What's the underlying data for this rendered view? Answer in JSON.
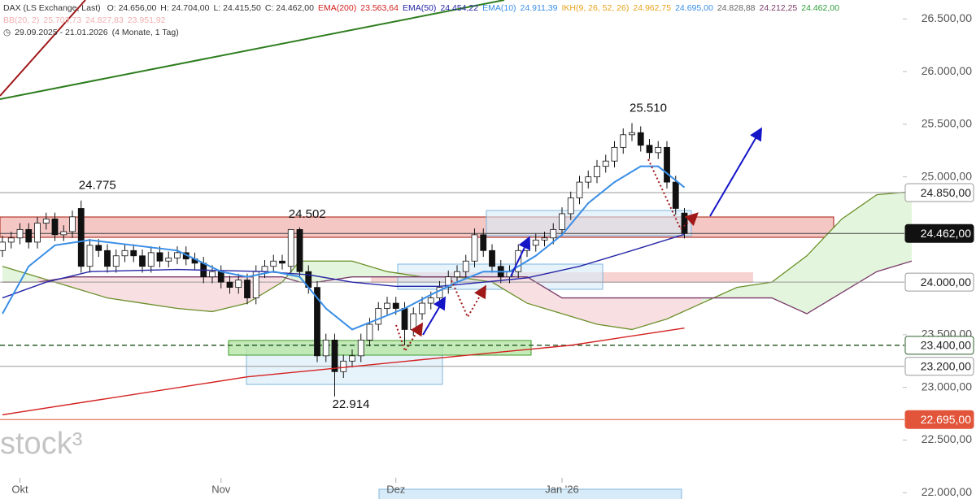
{
  "chart_data": {
    "type": "candlestick",
    "legend": {
      "title": "DAX (LS Exchange, Last)",
      "ohlc": [
        "O: 24.656,00",
        "H: 24.704,00",
        "L: 24.415,50",
        "C: 24.462,00"
      ],
      "indicators": [
        {
          "label": "EMA(200)",
          "values": [
            "23.563,64"
          ],
          "color": "#d42020",
          "value_colors": [
            "#d42020"
          ]
        },
        {
          "label": "EMA(50)",
          "values": [
            "24.454,22"
          ],
          "color": "#2626a6",
          "value_colors": [
            "#2626a6"
          ]
        },
        {
          "label": "EMA(10)",
          "values": [
            "24.911,39"
          ],
          "color": "#3a8ee6",
          "value_colors": [
            "#3a8ee6"
          ]
        },
        {
          "label": "IKH(9, 26, 52, 26)",
          "values": [
            "24.962,75",
            "24.695,00",
            "24.828,88",
            "24.212,25",
            "24.462,00"
          ],
          "color": "#e8a21c",
          "value_colors": [
            "#e8a21c",
            "#3a8ee6",
            "#666666",
            "#7a3a6a",
            "#2e9e3a"
          ]
        }
      ],
      "bb": {
        "label": "BB(20, 2)",
        "values": [
          "25.703,73",
          "24.827,83",
          "23.951,92"
        ],
        "color": "#f0b0b0"
      },
      "range": "29.09.2025 - 21.01.2026",
      "period": "(4 Monate, 1 Tag)"
    },
    "watermark": "stock³",
    "categories": [
      null,
      null,
      "Okt",
      null,
      null,
      null,
      null,
      null,
      null,
      null,
      null,
      null,
      null,
      null,
      null,
      null,
      null,
      null,
      null,
      null,
      null,
      null,
      null,
      null,
      null,
      "Nov",
      null,
      null,
      null,
      null,
      null,
      null,
      null,
      null,
      null,
      null,
      null,
      null,
      null,
      null,
      null,
      null,
      null,
      null,
      null,
      "Dez",
      null,
      null,
      null,
      null,
      null,
      null,
      null,
      null,
      null,
      null,
      null,
      null,
      null,
      null,
      null,
      null,
      null,
      null,
      "Jan '26",
      null,
      null,
      null,
      null,
      null,
      null,
      null,
      null,
      null,
      null,
      null,
      null,
      null,
      null
    ],
    "open": [
      24300,
      24380,
      24420,
      24500,
      24380,
      24560,
      24600,
      24450,
      24480,
      24700,
      24150,
      24350,
      24300,
      24150,
      24250,
      24300,
      24250,
      24150,
      24280,
      24200,
      24230,
      24280,
      24220,
      24180,
      24050,
      24100,
      24000,
      23950,
      24020,
      23850,
      24100,
      24150,
      24200,
      24150,
      24500,
      24100,
      23950,
      23300,
      23450,
      23150,
      23250,
      23300,
      23450,
      23600,
      23750,
      23800,
      23750,
      23550,
      23700,
      23800,
      23850,
      23950,
      24050,
      24100,
      24200,
      24450,
      24300,
      24150,
      24050,
      24100,
      24300,
      24350,
      24400,
      24420,
      24500,
      24650,
      24800,
      24950,
      25000,
      25100,
      25150,
      25280,
      25400,
      25420,
      25300,
      25230,
      25280,
      24950,
      24656
    ],
    "high": [
      24440,
      24480,
      24560,
      24560,
      24620,
      24660,
      24660,
      24540,
      24680,
      24775,
      24410,
      24410,
      24360,
      24310,
      24360,
      24360,
      24310,
      24340,
      24340,
      24290,
      24340,
      24340,
      24280,
      24240,
      24160,
      24160,
      24060,
      24080,
      24080,
      24160,
      24210,
      24260,
      24260,
      24502,
      24520,
      24160,
      24010,
      23510,
      23510,
      23310,
      23360,
      23510,
      23660,
      23810,
      23860,
      23860,
      23810,
      23760,
      23860,
      23910,
      24010,
      24110,
      24160,
      24260,
      24510,
      24510,
      24360,
      24210,
      24160,
      24360,
      24410,
      24460,
      24480,
      24560,
      24710,
      24860,
      25010,
      25060,
      25160,
      25210,
      25340,
      25460,
      25510,
      25480,
      25360,
      25340,
      25340,
      25010,
      24704
    ],
    "low": [
      24240,
      24320,
      24360,
      24320,
      24320,
      24500,
      24390,
      24390,
      24420,
      24090,
      24090,
      24240,
      24090,
      24090,
      24190,
      24190,
      24090,
      24090,
      24140,
      24140,
      24170,
      24160,
      24120,
      23990,
      23990,
      23940,
      23890,
      23890,
      23790,
      23790,
      24040,
      24090,
      24120,
      24090,
      24040,
      23890,
      23240,
      23240,
      22914,
      23090,
      23190,
      23240,
      23390,
      23540,
      23690,
      23690,
      23400,
      23490,
      23640,
      23740,
      23790,
      23890,
      23990,
      24040,
      24140,
      24240,
      24090,
      23990,
      23990,
      24040,
      24240,
      24290,
      24340,
      24360,
      24440,
      24590,
      24740,
      24890,
      24940,
      25040,
      25090,
      25220,
      25340,
      25240,
      25170,
      25170,
      24890,
      24640,
      24415.5
    ],
    "close": [
      24380,
      24420,
      24500,
      24380,
      24560,
      24600,
      24450,
      24480,
      24620,
      24150,
      24350,
      24300,
      24150,
      24250,
      24300,
      24250,
      24150,
      24280,
      24200,
      24230,
      24280,
      24220,
      24180,
      24050,
      24100,
      24000,
      23950,
      24020,
      23850,
      24100,
      24150,
      24200,
      24180,
      24500,
      24100,
      23950,
      23300,
      23450,
      23150,
      23250,
      23300,
      23450,
      23600,
      23750,
      23800,
      23750,
      23550,
      23700,
      23800,
      23850,
      23950,
      24050,
      24100,
      24200,
      24450,
      24300,
      24150,
      24050,
      24100,
      24300,
      24350,
      24400,
      24420,
      24500,
      24650,
      24800,
      24950,
      25000,
      25100,
      25150,
      25280,
      25400,
      25420,
      25300,
      25230,
      25280,
      24950,
      24700,
      24462
    ],
    "up_color": "#ffffff",
    "down_color": "#111111",
    "lines": [
      {
        "color": "#d42020",
        "x": [
          0,
          28,
          50,
          65,
          78
        ],
        "values": [
          22740,
          23100,
          23280,
          23400,
          23564
        ]
      },
      {
        "color": "#2626a6",
        "x": [
          0,
          5,
          10,
          20,
          30,
          35,
          40,
          45,
          50,
          55,
          60,
          66,
          72,
          78
        ],
        "values": [
          23850,
          24000,
          24100,
          24120,
          24100,
          24070,
          24000,
          23960,
          23960,
          24000,
          24040,
          24150,
          24300,
          24454
        ]
      },
      {
        "color": "#3a8ee6",
        "x": [
          0,
          3,
          6,
          10,
          15,
          20,
          25,
          28,
          31,
          34,
          37,
          40,
          43,
          46,
          49,
          52,
          55,
          58,
          61,
          64,
          67,
          70,
          73,
          75,
          78
        ],
        "values": [
          23700,
          24150,
          24350,
          24400,
          24350,
          24300,
          24100,
          24050,
          24100,
          24050,
          23750,
          23550,
          23650,
          23750,
          23880,
          24000,
          24100,
          24100,
          24250,
          24450,
          24750,
          24950,
          25100,
          25100,
          24900
        ]
      }
    ],
    "cloud": {
      "x": [
        0,
        4,
        8,
        12,
        16,
        20,
        24,
        28,
        32,
        34,
        36,
        40,
        44,
        48,
        52,
        56,
        60,
        64,
        68,
        72,
        76,
        80,
        84,
        88,
        92,
        96,
        100,
        104
      ],
      "span_a": [
        24150,
        24050,
        23950,
        23850,
        23800,
        23750,
        23720,
        23800,
        24000,
        24200,
        24200,
        24200,
        24100,
        24050,
        24050,
        24000,
        23800,
        23700,
        23600,
        23550,
        23650,
        23800,
        23950,
        24000,
        24250,
        24600,
        24830,
        24860
      ],
      "span_b": [
        24000,
        24000,
        24050,
        24050,
        24050,
        24050,
        24050,
        24050,
        24050,
        24000,
        24000,
        24050,
        24050,
        24050,
        24050,
        24050,
        24050,
        23850,
        23850,
        23850,
        23850,
        23850,
        23850,
        23850,
        23700,
        23900,
        24100,
        24200
      ],
      "span_a_color": "#6b8f2a",
      "span_b_color": "#7a3a6a",
      "bull_fill": "#e3f5dc",
      "bear_fill": "#f8e0e2"
    },
    "annotations": [
      {
        "label": "24.775",
        "value": 24775,
        "index": 9
      },
      {
        "label": "24.502",
        "value": 24502,
        "index": 33
      },
      {
        "label": "25.510",
        "value": 25510,
        "index": 72
      },
      {
        "label": "22.914",
        "value": 22914,
        "index": 38
      }
    ],
    "levels": [
      {
        "value": 24850,
        "label": "24.850,00",
        "line": "#9a9a9a",
        "bg": "#ffffff",
        "fg": "#222222",
        "border": "#9a9a9a",
        "dash": false
      },
      {
        "value": 24462,
        "label": "24.462,00",
        "line": "#444444",
        "bg": "#111111",
        "fg": "#ffffff",
        "border": "#111111",
        "dash": false
      },
      {
        "value": 24000,
        "label": "24.000,00",
        "line": "#9a9a9a",
        "bg": "#ffffff",
        "fg": "#222222",
        "border": "#9a9a9a",
        "dash": false
      },
      {
        "value": 23400,
        "label": "23.400,00",
        "line": "#2d5f2d",
        "bg": "#ffffff",
        "fg": "#222222",
        "border": "#2d5f2d",
        "dash": true
      },
      {
        "value": 23200,
        "label": "23.200,00",
        "line": "#9a9a9a",
        "bg": "#ffffff",
        "fg": "#222222",
        "border": "#9a9a9a",
        "dash": false
      },
      {
        "value": 22695,
        "label": "22.695,00",
        "line": "#e2553a",
        "bg": "#e2553a",
        "fg": "#ffffff",
        "border": "#e2553a",
        "dash": false
      }
    ],
    "ylim": [
      21940,
      26680
    ],
    "yticks": [
      {
        "value": 22000,
        "label": "22.000,00"
      },
      {
        "value": 22500,
        "label": "22.500,00"
      },
      {
        "value": 23000,
        "label": "23.000,00"
      },
      {
        "value": 23500,
        "label": "23.500,00"
      },
      {
        "value": 25000,
        "label": "25.000,00"
      },
      {
        "value": 25500,
        "label": "25.500,00"
      },
      {
        "value": 26000,
        "label": "26.000,00"
      },
      {
        "value": 26500,
        "label": "26.500,00"
      }
    ]
  }
}
